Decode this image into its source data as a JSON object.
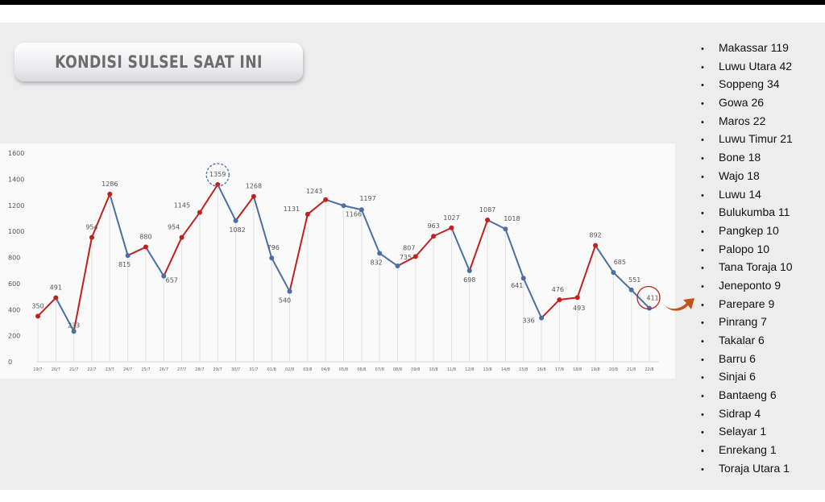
{
  "title": "KONDISI SULSEL SAAT INI",
  "colors": {
    "rise": "#c0211f",
    "fall": "#4a6fa5",
    "highlight_circle": "#c0211f",
    "arrow": "#c0561a"
  },
  "chart_data": {
    "type": "line",
    "title": "",
    "xlabel": "",
    "ylabel": "",
    "ylim": [
      0,
      1600
    ],
    "yticks": [
      0,
      200,
      400,
      600,
      800,
      1000,
      1200,
      1400,
      1600
    ],
    "categories": [
      "19/7",
      "20/7",
      "21/7",
      "22/7",
      "23/7",
      "24/7",
      "25/7",
      "26/7",
      "27/7",
      "28/7",
      "29/7",
      "30/7",
      "31/7",
      "01/8",
      "02/8",
      "03/8",
      "04/8",
      "05/8",
      "06/8",
      "07/8",
      "08/8",
      "09/8",
      "10/8",
      "11/8",
      "12/8",
      "13/8",
      "14/8",
      "15/8",
      "16/8",
      "17/8",
      "18/8",
      "19/8",
      "20/8",
      "21/8",
      "22/8"
    ],
    "values": [
      350,
      491,
      233,
      954,
      1286,
      815,
      880,
      657,
      954,
      1145,
      1359,
      1082,
      1268,
      796,
      540,
      1131,
      1243,
      1197,
      1166,
      832,
      735,
      807,
      963,
      1027,
      698,
      1087,
      1018,
      641,
      336,
      476,
      493,
      892,
      685,
      551,
      411
    ],
    "data_labels": [
      "350",
      "491",
      "233",
      "954",
      "1286",
      "815",
      "880",
      "657",
      "954",
      "1145",
      "1359",
      "1082",
      "1268",
      "796",
      "540",
      "1131",
      "1243",
      "1197",
      "1166",
      "832",
      "735",
      "807",
      "963",
      "1027",
      "698",
      "1087",
      "1018",
      "641",
      "336",
      "476",
      "493",
      "892",
      "685",
      "551",
      "411"
    ],
    "annotations": [
      "peak 1359 circled (dashed blue)",
      "last value 411 circled (red)"
    ],
    "grid": "vertical"
  },
  "regions": [
    "Makassar 119",
    "Luwu Utara 42",
    "Soppeng 34",
    "Gowa 26",
    "Maros 22",
    "Luwu Timur 21",
    "Bone 18",
    "Wajo 18",
    "Luwu 14",
    "Bulukumba 11",
    "Pangkep 10",
    "Palopo 10",
    "Tana Toraja 10",
    "Jeneponto 9",
    "Parepare 9",
    "Pinrang 7",
    "Takalar 6",
    "Barru 6",
    "Sinjai 6",
    "Bantaeng 6",
    "Sidrap 4",
    "Selayar 1",
    "Enrekang 1",
    "Toraja Utara 1"
  ]
}
